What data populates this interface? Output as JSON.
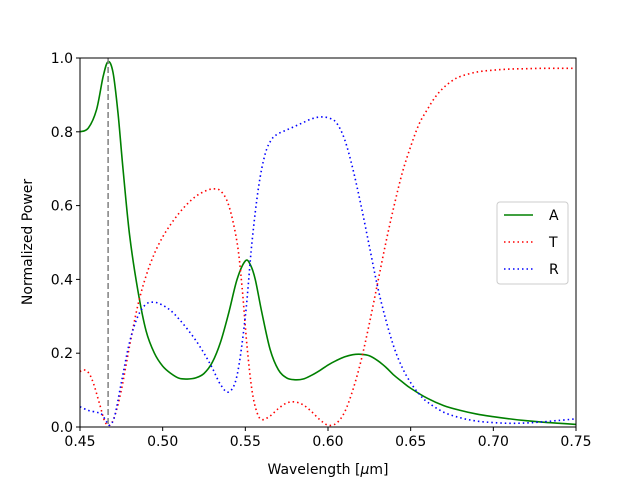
{
  "chart_data": {
    "type": "line",
    "xlabel_prefix": "Wavelength [",
    "xlabel_symbol": "μ",
    "xlabel_suffix": "m]",
    "ylabel": "Normalized Power",
    "xlim": [
      0.45,
      0.75
    ],
    "ylim": [
      0.0,
      1.0
    ],
    "xticks": [
      0.45,
      0.5,
      0.55,
      0.6,
      0.65,
      0.7,
      0.75
    ],
    "xtick_labels": [
      "0.45",
      "0.50",
      "0.55",
      "0.60",
      "0.65",
      "0.70",
      "0.75"
    ],
    "yticks": [
      0.0,
      0.2,
      0.4,
      0.6,
      0.8,
      1.0
    ],
    "ytick_labels": [
      "0.0",
      "0.2",
      "0.4",
      "0.6",
      "0.8",
      "1.0"
    ],
    "grid": false,
    "legend_position": "right",
    "vline": {
      "x": 0.467,
      "color": "#808080",
      "style": "dashed"
    },
    "series": [
      {
        "name": "A",
        "color": "#008000",
        "style": "solid",
        "points": [
          [
            0.45,
            0.8
          ],
          [
            0.455,
            0.81
          ],
          [
            0.46,
            0.86
          ],
          [
            0.464,
            0.95
          ],
          [
            0.467,
            0.99
          ],
          [
            0.47,
            0.96
          ],
          [
            0.473,
            0.85
          ],
          [
            0.476,
            0.7
          ],
          [
            0.48,
            0.52
          ],
          [
            0.485,
            0.37
          ],
          [
            0.49,
            0.26
          ],
          [
            0.495,
            0.2
          ],
          [
            0.5,
            0.165
          ],
          [
            0.505,
            0.145
          ],
          [
            0.51,
            0.132
          ],
          [
            0.515,
            0.13
          ],
          [
            0.52,
            0.133
          ],
          [
            0.525,
            0.145
          ],
          [
            0.53,
            0.175
          ],
          [
            0.535,
            0.23
          ],
          [
            0.54,
            0.31
          ],
          [
            0.545,
            0.4
          ],
          [
            0.55,
            0.45
          ],
          [
            0.553,
            0.44
          ],
          [
            0.556,
            0.4
          ],
          [
            0.56,
            0.31
          ],
          [
            0.565,
            0.21
          ],
          [
            0.57,
            0.155
          ],
          [
            0.575,
            0.133
          ],
          [
            0.58,
            0.128
          ],
          [
            0.585,
            0.13
          ],
          [
            0.59,
            0.14
          ],
          [
            0.595,
            0.153
          ],
          [
            0.6,
            0.168
          ],
          [
            0.605,
            0.18
          ],
          [
            0.61,
            0.19
          ],
          [
            0.615,
            0.196
          ],
          [
            0.62,
            0.197
          ],
          [
            0.625,
            0.193
          ],
          [
            0.63,
            0.18
          ],
          [
            0.635,
            0.162
          ],
          [
            0.64,
            0.14
          ],
          [
            0.645,
            0.122
          ],
          [
            0.65,
            0.105
          ],
          [
            0.66,
            0.078
          ],
          [
            0.67,
            0.058
          ],
          [
            0.68,
            0.045
          ],
          [
            0.69,
            0.035
          ],
          [
            0.7,
            0.028
          ],
          [
            0.71,
            0.022
          ],
          [
            0.72,
            0.017
          ],
          [
            0.73,
            0.013
          ],
          [
            0.74,
            0.01
          ],
          [
            0.75,
            0.007
          ]
        ]
      },
      {
        "name": "T",
        "color": "#ff0000",
        "style": "dotted",
        "points": [
          [
            0.45,
            0.15
          ],
          [
            0.452,
            0.155
          ],
          [
            0.455,
            0.148
          ],
          [
            0.458,
            0.12
          ],
          [
            0.462,
            0.06
          ],
          [
            0.465,
            0.015
          ],
          [
            0.468,
            0.005
          ],
          [
            0.471,
            0.03
          ],
          [
            0.475,
            0.1
          ],
          [
            0.48,
            0.22
          ],
          [
            0.485,
            0.33
          ],
          [
            0.49,
            0.41
          ],
          [
            0.495,
            0.47
          ],
          [
            0.5,
            0.515
          ],
          [
            0.505,
            0.55
          ],
          [
            0.51,
            0.58
          ],
          [
            0.515,
            0.605
          ],
          [
            0.52,
            0.625
          ],
          [
            0.525,
            0.638
          ],
          [
            0.53,
            0.645
          ],
          [
            0.535,
            0.64
          ],
          [
            0.54,
            0.6
          ],
          [
            0.545,
            0.5
          ],
          [
            0.548,
            0.38
          ],
          [
            0.551,
            0.22
          ],
          [
            0.554,
            0.1
          ],
          [
            0.557,
            0.04
          ],
          [
            0.56,
            0.02
          ],
          [
            0.565,
            0.03
          ],
          [
            0.57,
            0.05
          ],
          [
            0.575,
            0.065
          ],
          [
            0.58,
            0.068
          ],
          [
            0.585,
            0.06
          ],
          [
            0.59,
            0.042
          ],
          [
            0.595,
            0.02
          ],
          [
            0.6,
            0.005
          ],
          [
            0.605,
            0.01
          ],
          [
            0.61,
            0.04
          ],
          [
            0.615,
            0.1
          ],
          [
            0.62,
            0.18
          ],
          [
            0.625,
            0.28
          ],
          [
            0.63,
            0.39
          ],
          [
            0.635,
            0.5
          ],
          [
            0.64,
            0.6
          ],
          [
            0.645,
            0.69
          ],
          [
            0.65,
            0.76
          ],
          [
            0.655,
            0.82
          ],
          [
            0.66,
            0.86
          ],
          [
            0.665,
            0.895
          ],
          [
            0.67,
            0.92
          ],
          [
            0.675,
            0.938
          ],
          [
            0.68,
            0.95
          ],
          [
            0.69,
            0.962
          ],
          [
            0.7,
            0.967
          ],
          [
            0.71,
            0.97
          ],
          [
            0.72,
            0.971
          ],
          [
            0.73,
            0.972
          ],
          [
            0.74,
            0.972
          ],
          [
            0.75,
            0.972
          ]
        ]
      },
      {
        "name": "R",
        "color": "#0000ff",
        "style": "dotted",
        "points": [
          [
            0.45,
            0.055
          ],
          [
            0.455,
            0.045
          ],
          [
            0.46,
            0.04
          ],
          [
            0.463,
            0.035
          ],
          [
            0.466,
            0.015
          ],
          [
            0.468,
            0.005
          ],
          [
            0.471,
            0.03
          ],
          [
            0.475,
            0.12
          ],
          [
            0.48,
            0.23
          ],
          [
            0.485,
            0.3
          ],
          [
            0.49,
            0.333
          ],
          [
            0.495,
            0.338
          ],
          [
            0.5,
            0.33
          ],
          [
            0.505,
            0.315
          ],
          [
            0.51,
            0.292
          ],
          [
            0.515,
            0.265
          ],
          [
            0.52,
            0.235
          ],
          [
            0.525,
            0.2
          ],
          [
            0.53,
            0.16
          ],
          [
            0.535,
            0.115
          ],
          [
            0.54,
            0.095
          ],
          [
            0.545,
            0.14
          ],
          [
            0.55,
            0.3
          ],
          [
            0.554,
            0.5
          ],
          [
            0.558,
            0.65
          ],
          [
            0.562,
            0.74
          ],
          [
            0.566,
            0.78
          ],
          [
            0.57,
            0.795
          ],
          [
            0.575,
            0.805
          ],
          [
            0.58,
            0.815
          ],
          [
            0.585,
            0.825
          ],
          [
            0.59,
            0.835
          ],
          [
            0.595,
            0.84
          ],
          [
            0.6,
            0.838
          ],
          [
            0.605,
            0.825
          ],
          [
            0.61,
            0.78
          ],
          [
            0.615,
            0.7
          ],
          [
            0.62,
            0.6
          ],
          [
            0.625,
            0.49
          ],
          [
            0.63,
            0.38
          ],
          [
            0.635,
            0.29
          ],
          [
            0.64,
            0.215
          ],
          [
            0.645,
            0.16
          ],
          [
            0.65,
            0.12
          ],
          [
            0.655,
            0.09
          ],
          [
            0.66,
            0.068
          ],
          [
            0.67,
            0.04
          ],
          [
            0.68,
            0.025
          ],
          [
            0.69,
            0.016
          ],
          [
            0.7,
            0.012
          ],
          [
            0.71,
            0.01
          ],
          [
            0.72,
            0.011
          ],
          [
            0.73,
            0.014
          ],
          [
            0.74,
            0.018
          ],
          [
            0.75,
            0.022
          ]
        ]
      }
    ]
  }
}
